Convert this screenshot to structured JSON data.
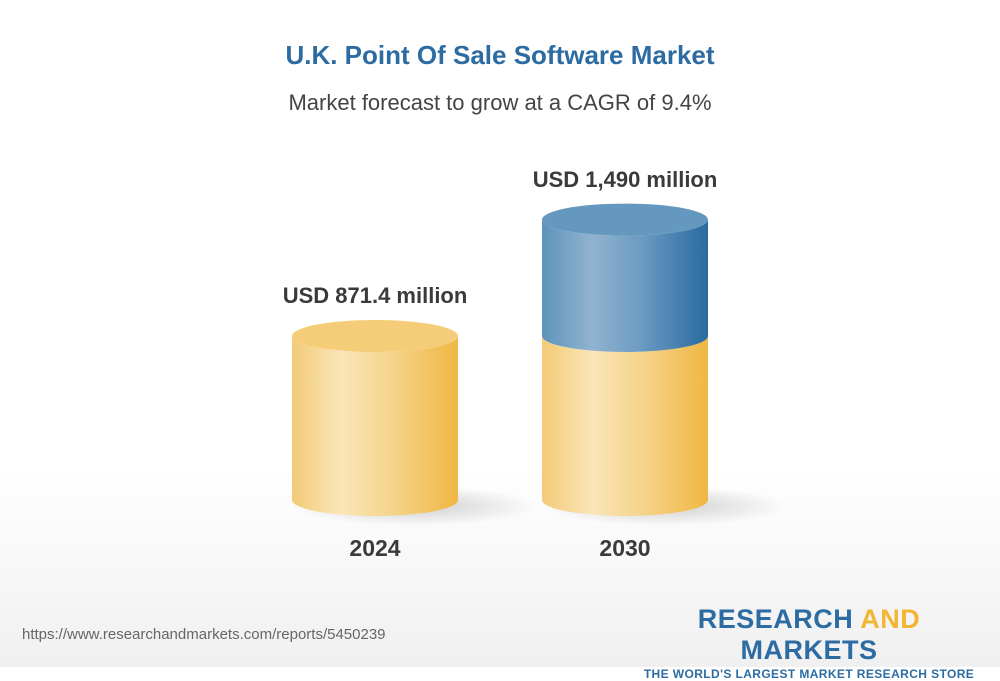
{
  "header": {
    "title": "U.K. Point Of Sale Software Market",
    "subtitle": "Market forecast to grow at a CAGR of 9.4%"
  },
  "chart_data": {
    "type": "bar",
    "style": "3d-cylinder",
    "categories": [
      "2024",
      "2030"
    ],
    "values": [
      871.4,
      1490
    ],
    "unit": "USD million",
    "data_labels": [
      "USD 871.4 million",
      "USD 1,490 million"
    ],
    "grid": false,
    "colors": {
      "base": "#f2b84b",
      "growth": "#2d6ca2"
    }
  },
  "footer": {
    "url": "https://www.researchandmarkets.com/reports/5450239",
    "logo": {
      "part1": "RESEARCH ",
      "part2": "AND",
      "part3": " MARKETS",
      "tagline": "THE WORLD'S LARGEST MARKET RESEARCH STORE"
    }
  }
}
